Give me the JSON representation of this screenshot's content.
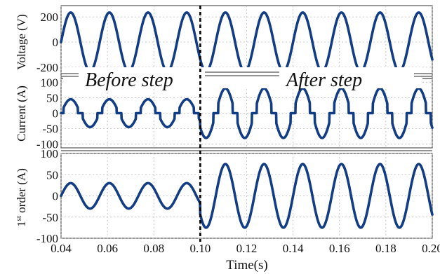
{
  "chart_data": {
    "type": "line",
    "xlabel": "Time(s)",
    "xlim": [
      0.04,
      0.2
    ],
    "xticks": [
      "0.04",
      "0.06",
      "0.08",
      "0.10",
      "0.12",
      "0.14",
      "0.16",
      "0.18",
      "0.20"
    ],
    "step_time": 0.1,
    "step_line_color": "#000000",
    "series_color": "#123c83",
    "annotations": {
      "before": "Before step",
      "after": "After step"
    },
    "grid": true,
    "panels": [
      {
        "ylabel": "Voltage (V)",
        "ylim": [
          -290,
          290
        ],
        "yticks": [
          200,
          0,
          -200
        ],
        "ytick_labels": [
          "200",
          "0",
          "-200"
        ],
        "signal": {
          "kind": "sine",
          "freq_hz": 60,
          "amplitude": 235,
          "amplitude_after": 235
        }
      },
      {
        "ylabel": "Current (A)",
        "ylim": [
          -112,
          112
        ],
        "yticks": [
          100,
          50,
          0,
          -50,
          -100
        ],
        "ytick_labels": [
          "100",
          "50",
          "0",
          "-50",
          "-100"
        ],
        "signal": {
          "kind": "chopped_sine",
          "freq_hz": 60,
          "amplitude": 45,
          "amplitude_after": 80,
          "dead_band": 0.38
        }
      },
      {
        "ylabel_prefix": "1",
        "ylabel_sup": "st",
        "ylabel": " order (A)",
        "ylim": [
          -100,
          100
        ],
        "yticks": [
          100,
          50,
          0,
          -50,
          -100
        ],
        "ytick_labels": [
          "100",
          "50",
          "0",
          "-50",
          "-100"
        ],
        "signal": {
          "kind": "sine",
          "freq_hz": 60,
          "amplitude": 30,
          "amplitude_after": 75
        }
      }
    ]
  }
}
